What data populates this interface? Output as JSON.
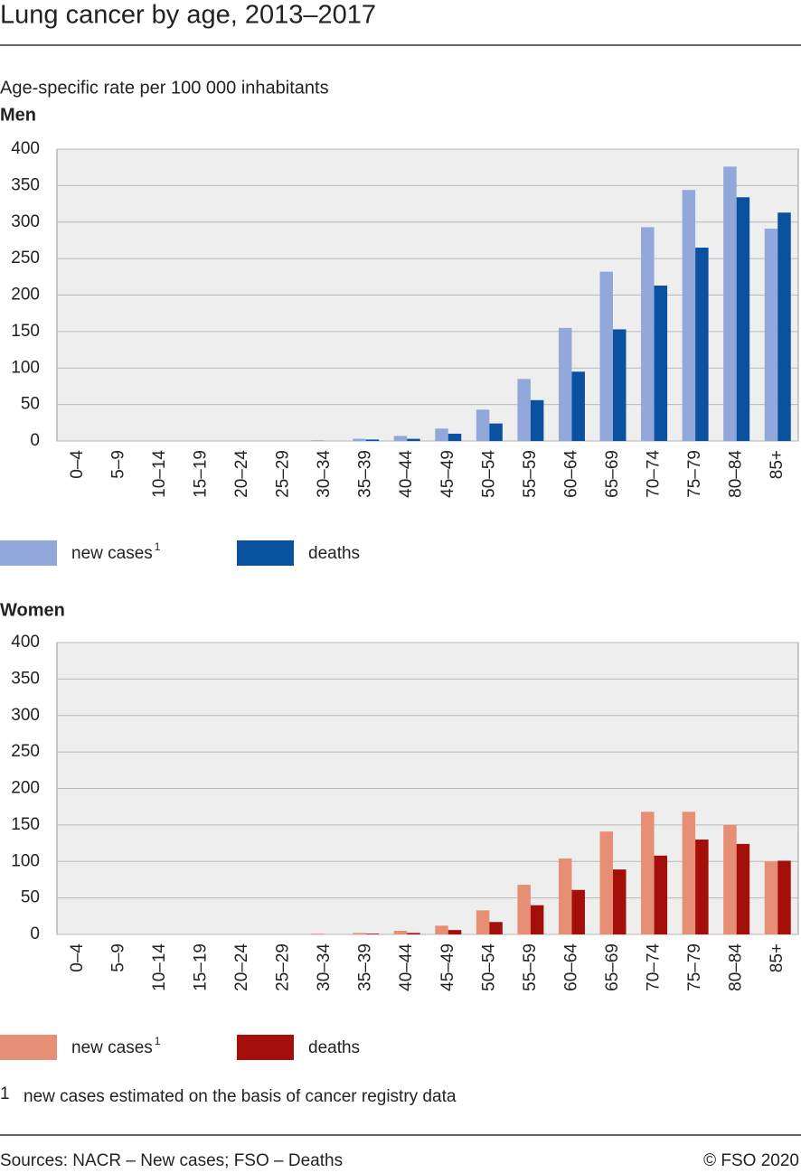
{
  "title": "Lung cancer by age, 2013–2017",
  "subtitle": "Age-specific rate per 100 000 inhabitants",
  "chart_data": [
    {
      "type": "bar",
      "title": "Men",
      "categories": [
        "0–4",
        "5–9",
        "10–14",
        "15–19",
        "20–24",
        "25–29",
        "30–34",
        "35–39",
        "40–44",
        "45–49",
        "50–54",
        "55–59",
        "60–64",
        "65–69",
        "70–74",
        "75–79",
        "80–84",
        "85+"
      ],
      "series": [
        {
          "name": "new cases",
          "color": "#92a8db",
          "values": [
            0,
            0,
            0,
            0,
            0,
            0,
            1,
            3,
            7,
            17,
            43,
            85,
            155,
            232,
            293,
            344,
            376,
            291
          ]
        },
        {
          "name": "deaths",
          "color": "#0a52a0",
          "values": [
            0,
            0,
            0,
            0,
            0,
            0,
            0,
            2,
            3,
            10,
            24,
            56,
            95,
            153,
            213,
            265,
            334,
            313
          ]
        }
      ],
      "ylim": [
        0,
        400
      ],
      "yticks": [
        0,
        50,
        100,
        150,
        200,
        250,
        300,
        350,
        400
      ],
      "grid": true
    },
    {
      "type": "bar",
      "title": "Women",
      "categories": [
        "0–4",
        "5–9",
        "10–14",
        "15–19",
        "20–24",
        "25–29",
        "30–34",
        "35–39",
        "40–44",
        "45–49",
        "50–54",
        "55–59",
        "60–64",
        "65–69",
        "70–74",
        "75–79",
        "80–84",
        "85+"
      ],
      "series": [
        {
          "name": "new cases",
          "color": "#e78f74",
          "values": [
            0,
            0,
            0,
            0,
            0,
            0,
            1,
            2,
            5,
            12,
            33,
            68,
            104,
            141,
            168,
            168,
            150,
            100
          ]
        },
        {
          "name": "deaths",
          "color": "#a50f0a",
          "values": [
            0,
            0,
            0,
            0,
            0,
            0,
            0,
            1,
            2,
            6,
            17,
            40,
            61,
            89,
            108,
            130,
            124,
            101
          ]
        }
      ],
      "ylim": [
        0,
        400
      ],
      "yticks": [
        0,
        50,
        100,
        150,
        200,
        250,
        300,
        350,
        400
      ],
      "grid": true
    }
  ],
  "footnote": {
    "marker": "1",
    "text": "new cases estimated on the basis of cancer registry data"
  },
  "source": "Sources: NACR – New cases; FSO – Deaths",
  "copyright": "© FSO 2020"
}
